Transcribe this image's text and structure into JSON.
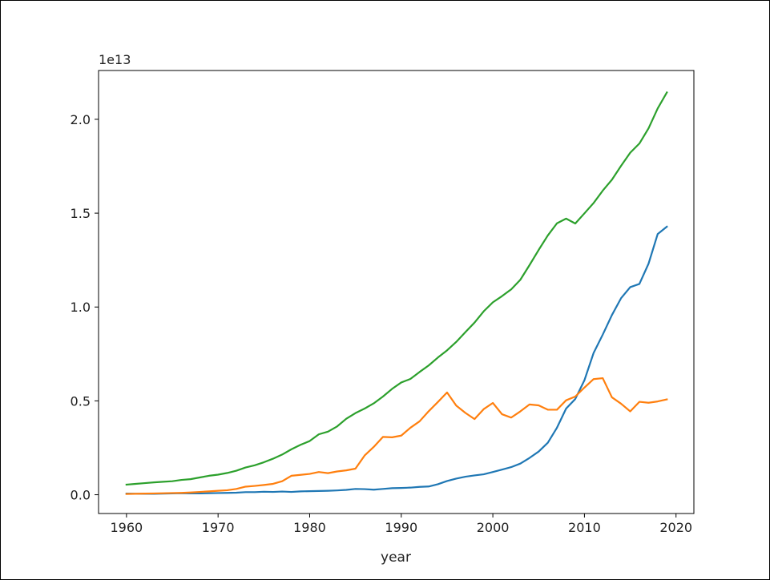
{
  "chart_data": {
    "type": "line",
    "title": "",
    "xlabel": "year",
    "ylabel": "",
    "y_offset_label": "1e13",
    "xlim": [
      1956.95,
      2021.95
    ],
    "ylim": [
      -0.1,
      2.26
    ],
    "x_ticks": [
      1960,
      1970,
      1980,
      1990,
      2000,
      2010,
      2020
    ],
    "x_tick_labels": [
      "1960",
      "1970",
      "1980",
      "1990",
      "2000",
      "2010",
      "2020"
    ],
    "y_ticks": [
      0.0,
      0.5,
      1.0,
      1.5,
      2.0
    ],
    "y_tick_labels": [
      "0.0",
      "0.5",
      "1.0",
      "1.5",
      "2.0"
    ],
    "grid": false,
    "legend": "none",
    "x": [
      1960,
      1961,
      1962,
      1963,
      1964,
      1965,
      1966,
      1967,
      1968,
      1969,
      1970,
      1971,
      1972,
      1973,
      1974,
      1975,
      1976,
      1977,
      1978,
      1979,
      1980,
      1981,
      1982,
      1983,
      1984,
      1985,
      1986,
      1987,
      1988,
      1989,
      1990,
      1991,
      1992,
      1993,
      1994,
      1995,
      1996,
      1997,
      1998,
      1999,
      2000,
      2001,
      2002,
      2003,
      2004,
      2005,
      2006,
      2007,
      2008,
      2009,
      2010,
      2011,
      2012,
      2013,
      2014,
      2015,
      2016,
      2017,
      2018,
      2019
    ],
    "series": [
      {
        "color": "#1f77b4",
        "values": [
          0.006,
          0.005,
          0.005,
          0.005,
          0.006,
          0.007,
          0.008,
          0.007,
          0.007,
          0.008,
          0.009,
          0.01,
          0.011,
          0.014,
          0.014,
          0.016,
          0.015,
          0.017,
          0.015,
          0.018,
          0.019,
          0.02,
          0.021,
          0.023,
          0.026,
          0.031,
          0.03,
          0.027,
          0.031,
          0.035,
          0.036,
          0.038,
          0.042,
          0.044,
          0.056,
          0.073,
          0.086,
          0.096,
          0.103,
          0.109,
          0.121,
          0.134,
          0.147,
          0.166,
          0.196,
          0.23,
          0.277,
          0.357,
          0.459,
          0.51,
          0.61,
          0.755,
          0.853,
          0.957,
          1.047,
          1.106,
          1.123,
          1.231,
          1.389,
          1.428
        ]
      },
      {
        "color": "#ff7f0e",
        "values": [
          0.004,
          0.005,
          0.006,
          0.007,
          0.008,
          0.009,
          0.01,
          0.012,
          0.015,
          0.018,
          0.021,
          0.024,
          0.031,
          0.043,
          0.047,
          0.052,
          0.058,
          0.072,
          0.101,
          0.106,
          0.111,
          0.121,
          0.115,
          0.124,
          0.13,
          0.139,
          0.209,
          0.255,
          0.308,
          0.306,
          0.315,
          0.357,
          0.391,
          0.445,
          0.494,
          0.545,
          0.475,
          0.436,
          0.403,
          0.456,
          0.489,
          0.429,
          0.411,
          0.444,
          0.481,
          0.476,
          0.453,
          0.453,
          0.503,
          0.523,
          0.571,
          0.616,
          0.621,
          0.519,
          0.485,
          0.444,
          0.495,
          0.49,
          0.497,
          0.508
        ]
      },
      {
        "color": "#2ca02c",
        "values": [
          0.054,
          0.058,
          0.062,
          0.066,
          0.069,
          0.072,
          0.079,
          0.083,
          0.092,
          0.101,
          0.107,
          0.116,
          0.128,
          0.145,
          0.157,
          0.173,
          0.192,
          0.214,
          0.242,
          0.266,
          0.286,
          0.322,
          0.336,
          0.364,
          0.405,
          0.435,
          0.459,
          0.487,
          0.523,
          0.564,
          0.598,
          0.617,
          0.654,
          0.689,
          0.731,
          0.769,
          0.814,
          0.866,
          0.917,
          0.977,
          1.025,
          1.058,
          1.094,
          1.145,
          1.223,
          1.304,
          1.381,
          1.446,
          1.471,
          1.445,
          1.499,
          1.554,
          1.62,
          1.678,
          1.752,
          1.822,
          1.871,
          1.952,
          2.058,
          2.143
        ]
      }
    ]
  }
}
